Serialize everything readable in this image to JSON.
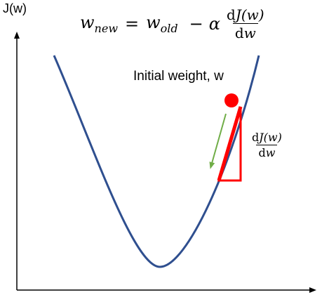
{
  "axis": {
    "y_label": "J(w)"
  },
  "formula": {
    "lhs_var": "w",
    "lhs_sub": "new",
    "equals": "=",
    "rhs_var": "w",
    "rhs_sub": "old",
    "minus": "−",
    "alpha": "α",
    "num_d": "d",
    "num_expr": "J(w)",
    "den_d": "d",
    "den_var": "w"
  },
  "annotation": {
    "label": "Initial weight, w"
  },
  "triangle_label": {
    "num_d": "d",
    "num_expr": "J(w)",
    "den_d": "d",
    "den_var": "w"
  },
  "colors": {
    "curve": "#2F4F8F",
    "point": "#FF0000",
    "triangle": "#FF0000",
    "arrow": "#70AD47",
    "axis": "#000000"
  }
}
